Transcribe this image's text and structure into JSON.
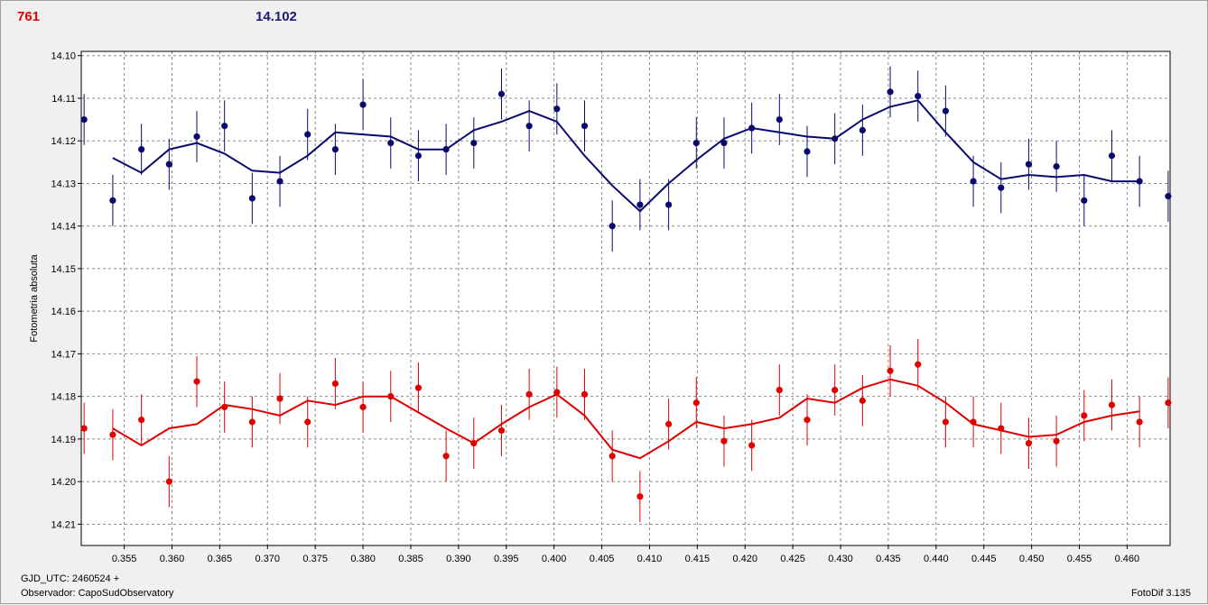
{
  "header": {
    "left_value": "761",
    "right_value": "14.102"
  },
  "footer": {
    "gjd_label": "GJD_UTC: 2460524 +",
    "observer_label": "Observador: CapoSudObservatory",
    "software_version": "FotoDif 3.135"
  },
  "chart_data": {
    "type": "scatter",
    "ylabel": "Fotometria absoluta",
    "xlabel": "",
    "xlim": [
      0.3505,
      0.4645
    ],
    "ylim": [
      14.215,
      14.099
    ],
    "y_inverted": true,
    "grid": true,
    "x_ticks": [
      "0.355",
      "0.360",
      "0.365",
      "0.370",
      "0.375",
      "0.380",
      "0.385",
      "0.390",
      "0.395",
      "0.400",
      "0.405",
      "0.410",
      "0.415",
      "0.420",
      "0.425",
      "0.430",
      "0.435",
      "0.440",
      "0.445",
      "0.450",
      "0.455",
      "0.460"
    ],
    "y_ticks": [
      "14.10",
      "14.11",
      "14.12",
      "14.13",
      "14.14",
      "14.15",
      "14.16",
      "14.17",
      "14.18",
      "14.19",
      "14.20",
      "14.21"
    ],
    "colors": {
      "blue": "#0a0a6e",
      "red": "#e00000"
    },
    "x": [
      0.3508,
      0.3538,
      0.3568,
      0.3597,
      0.3626,
      0.3655,
      0.3684,
      0.3713,
      0.3742,
      0.3771,
      0.38,
      0.3829,
      0.3858,
      0.3887,
      0.3916,
      0.3945,
      0.3974,
      0.4003,
      0.4032,
      0.4061,
      0.409,
      0.412,
      0.4149,
      0.4178,
      0.4207,
      0.4236,
      0.4265,
      0.4294,
      0.4323,
      0.4352,
      0.4381,
      0.441,
      0.4439,
      0.4468,
      0.4497,
      0.4526,
      0.4555,
      0.4584,
      0.4613,
      0.4643
    ],
    "series": [
      {
        "name": "",
        "color": "#0a0a6e",
        "y": [
          14.115,
          14.134,
          14.122,
          14.1255,
          14.119,
          14.1165,
          14.1335,
          14.1295,
          14.1185,
          14.122,
          14.1115,
          14.1205,
          14.1235,
          14.122,
          14.1205,
          14.109,
          14.1165,
          14.1125,
          14.1165,
          14.14,
          14.135,
          14.135,
          14.1205,
          14.1205,
          14.117,
          14.115,
          14.1225,
          14.1195,
          14.1175,
          14.1085,
          14.1095,
          14.113,
          14.1295,
          14.131,
          14.1255,
          14.126,
          14.134,
          14.1235,
          14.1295,
          14.133
        ],
        "yerr": [
          0.006,
          0.006,
          0.006,
          0.006,
          0.006,
          0.006,
          0.006,
          0.006,
          0.006,
          0.006,
          0.006,
          0.006,
          0.006,
          0.006,
          0.006,
          0.006,
          0.006,
          0.006,
          0.006,
          0.006,
          0.006,
          0.006,
          0.006,
          0.006,
          0.006,
          0.006,
          0.006,
          0.006,
          0.006,
          0.006,
          0.006,
          0.006,
          0.006,
          0.006,
          0.006,
          0.006,
          0.006,
          0.006,
          0.006,
          0.006
        ],
        "smooth_x": [
          0.3538,
          0.3568,
          0.3597,
          0.3626,
          0.3655,
          0.3684,
          0.3713,
          0.3742,
          0.3771,
          0.38,
          0.3829,
          0.3858,
          0.3887,
          0.3916,
          0.3945,
          0.3974,
          0.4003,
          0.4032,
          0.4061,
          0.409,
          0.412,
          0.4149,
          0.4178,
          0.4207,
          0.4236,
          0.4265,
          0.4294,
          0.4323,
          0.4352,
          0.4381,
          0.441,
          0.4439,
          0.4468,
          0.4497,
          0.4526,
          0.4555,
          0.4584,
          0.4613
        ],
        "smooth_y": [
          14.124,
          14.1275,
          14.122,
          14.1205,
          14.123,
          14.127,
          14.1275,
          14.1235,
          14.118,
          14.1185,
          14.119,
          14.122,
          14.122,
          14.1175,
          14.1155,
          14.113,
          14.1155,
          14.1235,
          14.1305,
          14.1365,
          14.13,
          14.1245,
          14.1195,
          14.117,
          14.118,
          14.119,
          14.1195,
          14.115,
          14.112,
          14.1105,
          14.118,
          14.125,
          14.129,
          14.128,
          14.1285,
          14.128,
          14.1295,
          14.1295
        ]
      },
      {
        "name": "",
        "color": "#e00000",
        "y": [
          14.1875,
          14.189,
          14.1855,
          14.2,
          14.1765,
          14.1825,
          14.186,
          14.1805,
          14.186,
          14.177,
          14.1825,
          14.18,
          14.178,
          14.194,
          14.191,
          14.188,
          14.1795,
          14.179,
          14.1795,
          14.194,
          14.2035,
          14.1865,
          14.1815,
          14.1905,
          14.1915,
          14.1785,
          14.1855,
          14.1785,
          14.181,
          14.174,
          14.1725,
          14.186,
          14.186,
          14.1875,
          14.191,
          14.1905,
          14.1845,
          14.182,
          14.186,
          14.1815
        ],
        "yerr": [
          0.006,
          0.006,
          0.006,
          0.006,
          0.006,
          0.006,
          0.006,
          0.006,
          0.006,
          0.006,
          0.006,
          0.006,
          0.006,
          0.006,
          0.006,
          0.006,
          0.006,
          0.006,
          0.006,
          0.006,
          0.006,
          0.006,
          0.006,
          0.006,
          0.006,
          0.006,
          0.006,
          0.006,
          0.006,
          0.006,
          0.006,
          0.006,
          0.006,
          0.006,
          0.006,
          0.006,
          0.006,
          0.006,
          0.006,
          0.006
        ],
        "smooth_x": [
          0.3538,
          0.3568,
          0.3597,
          0.3626,
          0.3655,
          0.3684,
          0.3713,
          0.3742,
          0.3771,
          0.38,
          0.3829,
          0.3887,
          0.3916,
          0.3945,
          0.3974,
          0.4003,
          0.4032,
          0.4061,
          0.409,
          0.412,
          0.4149,
          0.4178,
          0.4207,
          0.4236,
          0.4265,
          0.4294,
          0.4323,
          0.4352,
          0.4381,
          0.441,
          0.4439,
          0.4468,
          0.4497,
          0.4526,
          0.4555,
          0.4584,
          0.4613
        ],
        "smooth_y": [
          14.1875,
          14.1915,
          14.1875,
          14.1865,
          14.182,
          14.183,
          14.1845,
          14.181,
          14.182,
          14.18,
          14.18,
          14.1875,
          14.191,
          14.1865,
          14.1825,
          14.1795,
          14.1845,
          14.1925,
          14.1945,
          14.1905,
          14.186,
          14.1875,
          14.1865,
          14.185,
          14.1805,
          14.1815,
          14.178,
          14.176,
          14.1775,
          14.1815,
          14.1865,
          14.188,
          14.1895,
          14.189,
          14.186,
          14.1845,
          14.1835
        ]
      }
    ]
  }
}
